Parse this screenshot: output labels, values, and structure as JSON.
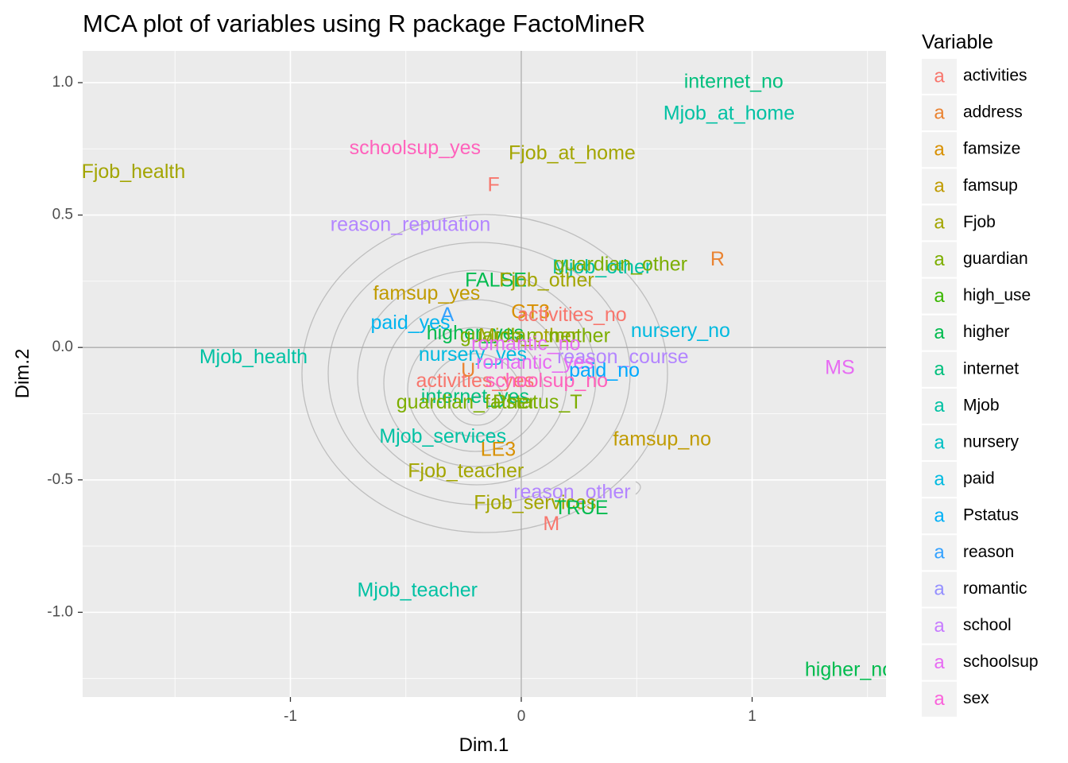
{
  "chart_data": {
    "type": "scatter",
    "title": "MCA plot of variables using R package FactoMineR",
    "xlabel": "Dim.1",
    "ylabel": "Dim.2",
    "xlim": [
      -1.9,
      1.58
    ],
    "ylim": [
      -1.32,
      1.12
    ],
    "x_ticks": [
      {
        "value": -1,
        "label": "-1"
      },
      {
        "value": 0,
        "label": "0"
      },
      {
        "value": 1,
        "label": "1"
      }
    ],
    "y_ticks": [
      {
        "value": 1.0,
        "label": "1.0"
      },
      {
        "value": 0.5,
        "label": "0.5"
      },
      {
        "value": 0.0,
        "label": "0.0"
      },
      {
        "value": -0.5,
        "label": "-0.5"
      },
      {
        "value": -1.0,
        "label": "-1.0"
      }
    ],
    "grid": true,
    "reference_lines": {
      "x": 0,
      "y": 0
    },
    "legend": {
      "title": "Variable",
      "position": "right",
      "key_glyph": "a",
      "entries": [
        {
          "name": "activities",
          "color": "#F8766D"
        },
        {
          "name": "address",
          "color": "#EA8331"
        },
        {
          "name": "famsize",
          "color": "#D89000"
        },
        {
          "name": "famsup",
          "color": "#C09B00"
        },
        {
          "name": "Fjob",
          "color": "#A3A500"
        },
        {
          "name": "guardian",
          "color": "#7CAE00"
        },
        {
          "name": "high_use",
          "color": "#39B600"
        },
        {
          "name": "higher",
          "color": "#00BB4E"
        },
        {
          "name": "internet",
          "color": "#00BF7D"
        },
        {
          "name": "Mjob",
          "color": "#00C1A3"
        },
        {
          "name": "nursery",
          "color": "#00BFC4"
        },
        {
          "name": "paid",
          "color": "#00BAE0"
        },
        {
          "name": "Pstatus",
          "color": "#00B0F6"
        },
        {
          "name": "reason",
          "color": "#35A2FF"
        },
        {
          "name": "romantic",
          "color": "#9590FF"
        },
        {
          "name": "school",
          "color": "#C77CFF"
        },
        {
          "name": "schoolsup",
          "color": "#E76BF3"
        },
        {
          "name": "sex",
          "color": "#FA62DB"
        }
      ]
    },
    "points": [
      {
        "label": "internet_no",
        "variable": "internet",
        "x": 0.92,
        "y": 1.0,
        "color": "#00BF7D"
      },
      {
        "label": "Mjob_at_home",
        "variable": "Mjob",
        "x": 0.9,
        "y": 0.88,
        "color": "#00C1A3"
      },
      {
        "label": "schoolsup_yes",
        "variable": "schoolsup",
        "x": -0.46,
        "y": 0.75,
        "color": "#FF62BC"
      },
      {
        "label": "Fjob_at_home",
        "variable": "Fjob",
        "x": 0.22,
        "y": 0.73,
        "color": "#A3A500"
      },
      {
        "label": "Fjob_health",
        "variable": "Fjob",
        "x": -1.68,
        "y": 0.66,
        "color": "#A3A500"
      },
      {
        "label": "F",
        "variable": "sex",
        "x": -0.12,
        "y": 0.61,
        "color": "#F8766D"
      },
      {
        "label": "reason_reputation",
        "variable": "reason",
        "x": -0.48,
        "y": 0.46,
        "color": "#B385FF"
      },
      {
        "label": "R",
        "variable": "address",
        "x": 0.85,
        "y": 0.33,
        "color": "#EA8331"
      },
      {
        "label": "Mjob_other",
        "variable": "Mjob",
        "x": 0.35,
        "y": 0.3,
        "color": "#00C1A3"
      },
      {
        "label": "guardian_other",
        "variable": "guardian",
        "x": 0.43,
        "y": 0.31,
        "color": "#7CAE00"
      },
      {
        "label": "FALSE",
        "variable": "high_use",
        "x": -0.11,
        "y": 0.25,
        "color": "#00BB4E"
      },
      {
        "label": "Fjob_other",
        "variable": "Fjob",
        "x": 0.11,
        "y": 0.25,
        "color": "#A3A500"
      },
      {
        "label": "famsup_yes",
        "variable": "famsup",
        "x": -0.41,
        "y": 0.2,
        "color": "#C09B00"
      },
      {
        "label": "GT3",
        "variable": "famsize",
        "x": 0.04,
        "y": 0.13,
        "color": "#D89000"
      },
      {
        "label": "activities_no",
        "variable": "activities",
        "x": 0.22,
        "y": 0.12,
        "color": "#F8766D"
      },
      {
        "label": "A",
        "variable": "Pstatus",
        "x": -0.32,
        "y": 0.12,
        "color": "#35A2FF"
      },
      {
        "label": "paid_yes",
        "variable": "paid",
        "x": -0.48,
        "y": 0.09,
        "color": "#00B4EF"
      },
      {
        "label": "nursery_no",
        "variable": "nursery",
        "x": 0.69,
        "y": 0.06,
        "color": "#00BAE0"
      },
      {
        "label": "higher_yes",
        "variable": "higher",
        "x": -0.2,
        "y": 0.05,
        "color": "#00BB4E"
      },
      {
        "label": "Mjob_other",
        "variable": "Mjob",
        "x": 0.03,
        "y": 0.04,
        "color": "#A3A500"
      },
      {
        "label": "guardian_mother",
        "variable": "guardian",
        "x": 0.06,
        "y": 0.04,
        "color": "#7CAE00"
      },
      {
        "label": "romantic_no",
        "variable": "romantic",
        "x": 0.02,
        "y": 0.01,
        "color": "#E76BF3"
      },
      {
        "label": "Mjob_health",
        "variable": "Mjob",
        "x": -1.16,
        "y": -0.04,
        "color": "#00C1A3"
      },
      {
        "label": "nursery_yes",
        "variable": "nursery",
        "x": -0.21,
        "y": -0.03,
        "color": "#00BAE0"
      },
      {
        "label": "reason_course",
        "variable": "reason",
        "x": 0.44,
        "y": -0.04,
        "color": "#B385FF"
      },
      {
        "label": "romantic_yes",
        "variable": "romantic",
        "x": 0.06,
        "y": -0.06,
        "color": "#E76BF3"
      },
      {
        "label": "paid_no",
        "variable": "paid",
        "x": 0.36,
        "y": -0.09,
        "color": "#00A9FF"
      },
      {
        "label": "MS",
        "variable": "school",
        "x": 1.38,
        "y": -0.08,
        "color": "#E76BF3"
      },
      {
        "label": "U",
        "variable": "address",
        "x": -0.23,
        "y": -0.09,
        "color": "#EA8331"
      },
      {
        "label": "activities_yes",
        "variable": "activities",
        "x": -0.2,
        "y": -0.13,
        "color": "#F8766D"
      },
      {
        "label": "schoolsup_no",
        "variable": "schoolsup",
        "x": 0.11,
        "y": -0.13,
        "color": "#FF62BC"
      },
      {
        "label": "internet_yes",
        "variable": "internet",
        "x": -0.2,
        "y": -0.19,
        "color": "#00BF7D"
      },
      {
        "label": "guardian_father",
        "variable": "guardian",
        "x": -0.24,
        "y": -0.21,
        "color": "#7CAE00"
      },
      {
        "label": "Pstatus_T",
        "variable": "Pstatus",
        "x": 0.07,
        "y": -0.21,
        "color": "#7CAE00"
      },
      {
        "label": "Mjob_services",
        "variable": "Mjob",
        "x": -0.34,
        "y": -0.34,
        "color": "#00C1A3"
      },
      {
        "label": "famsup_no",
        "variable": "famsup",
        "x": 0.61,
        "y": -0.35,
        "color": "#C09B00"
      },
      {
        "label": "LE3",
        "variable": "famsize",
        "x": -0.1,
        "y": -0.39,
        "color": "#D89000"
      },
      {
        "label": "Fjob_teacher",
        "variable": "Fjob",
        "x": -0.24,
        "y": -0.47,
        "color": "#A3A500"
      },
      {
        "label": "reason_other",
        "variable": "reason",
        "x": 0.22,
        "y": -0.55,
        "color": "#B385FF"
      },
      {
        "label": "Fjob_services",
        "variable": "Fjob",
        "x": 0.06,
        "y": -0.59,
        "color": "#A3A500"
      },
      {
        "label": "TRUE",
        "variable": "high_use",
        "x": 0.26,
        "y": -0.61,
        "color": "#00BB4E"
      },
      {
        "label": "M",
        "variable": "sex",
        "x": 0.13,
        "y": -0.67,
        "color": "#F8766D"
      },
      {
        "label": "Mjob_teacher",
        "variable": "Mjob",
        "x": -0.45,
        "y": -0.92,
        "color": "#00C1A3"
      },
      {
        "label": "higher_no",
        "variable": "higher",
        "x": 1.42,
        "y": -1.22,
        "color": "#00BB4E"
      }
    ]
  }
}
